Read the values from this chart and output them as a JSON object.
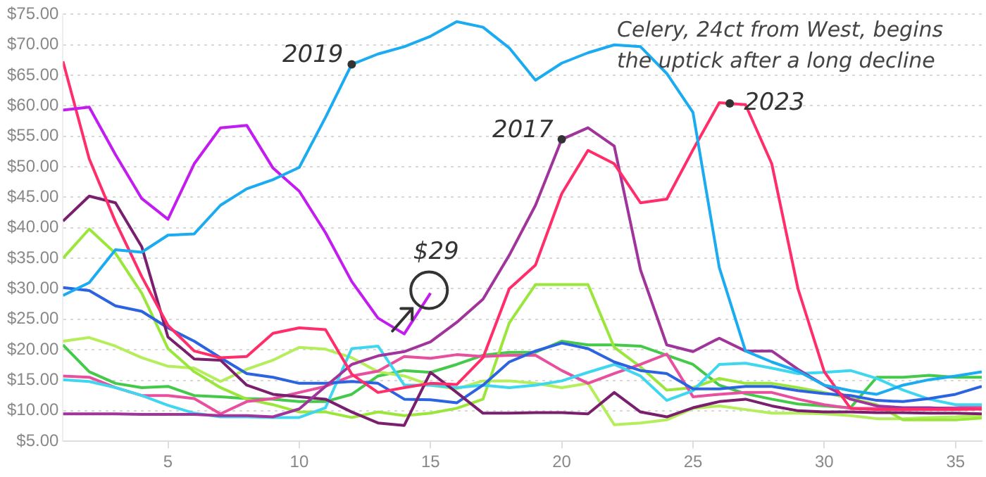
{
  "chart_data": {
    "type": "line",
    "x": [
      1,
      2,
      3,
      4,
      5,
      6,
      7,
      8,
      9,
      10,
      11,
      12,
      13,
      14,
      15,
      16,
      17,
      18,
      19,
      20,
      21,
      22,
      23,
      24,
      25,
      26,
      27,
      28,
      29,
      30,
      31,
      32,
      33,
      34,
      35,
      36
    ],
    "xlim": [
      1,
      36
    ],
    "xticks": [
      5,
      10,
      15,
      20,
      25,
      30,
      35
    ],
    "ylim": [
      5,
      75
    ],
    "yticks": [
      {
        "value": 5,
        "label": "$5.00"
      },
      {
        "value": 10,
        "label": "$10.00"
      },
      {
        "value": 15,
        "label": "$15.00"
      },
      {
        "value": 20,
        "label": "$20.00"
      },
      {
        "value": 25,
        "label": "$25.00"
      },
      {
        "value": 30,
        "label": "$30.00"
      },
      {
        "value": 35,
        "label": "$35.00"
      },
      {
        "value": 40,
        "label": "$40.00"
      },
      {
        "value": 45,
        "label": "$45.00"
      },
      {
        "value": 50,
        "label": "$50.00"
      },
      {
        "value": 55,
        "label": "$55.00"
      },
      {
        "value": 60,
        "label": "$60.00"
      },
      {
        "value": 65,
        "label": "$65.00"
      },
      {
        "value": 70,
        "label": "$70.00"
      },
      {
        "value": 75,
        "label": "$75.00"
      }
    ],
    "grid": "y",
    "marker": "none",
    "line_style": "solid",
    "series": [
      {
        "color": "#1aabf0",
        "values": [
          28.9,
          31,
          36.4,
          36,
          38.8,
          39,
          43.7,
          46.4,
          47.9,
          49.9,
          58.1,
          66.8,
          68.5,
          69.7,
          71.4,
          73.8,
          72.9,
          69.5,
          64.2,
          67,
          68.7,
          70,
          69.7,
          65.3,
          58.9,
          33.5,
          19.8,
          18,
          16.5,
          14.2,
          13.3,
          12.7,
          14.2,
          15.1,
          15.7,
          16.4
        ]
      },
      {
        "color": "#c21cf0",
        "values": [
          59.3,
          59.8,
          52,
          44.8,
          41.4,
          50.5,
          56.4,
          56.8,
          49.8,
          46,
          39.2,
          31.2,
          25.2,
          22.6,
          29.3,
          null,
          null,
          null,
          null,
          null,
          null,
          null,
          null,
          null,
          null,
          null,
          null,
          null,
          null,
          null,
          null,
          null,
          null,
          null,
          null,
          null
        ]
      },
      {
        "color": "#ff2d6a",
        "values": [
          67.3,
          51.3,
          41,
          32,
          24,
          19.8,
          18.7,
          18.9,
          22.7,
          23.6,
          23.3,
          16,
          13,
          13.8,
          14.5,
          14.3,
          18.7,
          30,
          33.9,
          45.6,
          52.7,
          50.5,
          44.1,
          44.7,
          52.8,
          60.5,
          60.2,
          50.5,
          30,
          16.4,
          10.4,
          10.2,
          10.2,
          10.2,
          10.2,
          10.3
        ]
      },
      {
        "color": "#a0349a",
        "values": [
          9.5,
          9.5,
          9.5,
          9.4,
          9.4,
          9.4,
          9.2,
          9.2,
          9,
          10.3,
          14,
          17.6,
          19,
          19.7,
          21.3,
          24.5,
          28.3,
          35.5,
          43.7,
          54.5,
          56.4,
          53.4,
          33.1,
          20.8,
          19.7,
          21.9,
          19.8,
          19.8,
          16.8,
          14.2,
          11.9,
          10.8,
          10.5,
          10.5,
          10.3,
          10.3
        ]
      },
      {
        "color": "#7a1f6e",
        "values": [
          41.1,
          45.2,
          44.1,
          36.9,
          22.1,
          18.5,
          18.3,
          14.2,
          12.7,
          12.3,
          11.9,
          9.8,
          8,
          7.6,
          16.3,
          13,
          9.6,
          9.6,
          9.7,
          9.7,
          9.5,
          13,
          9.8,
          9,
          10.5,
          11.5,
          11.9,
          10.8,
          10,
          9.8,
          9.8,
          9.7,
          9.7,
          9.6,
          9.6,
          9.5
        ]
      },
      {
        "color": "#2b63e0",
        "values": [
          30.2,
          29.7,
          27.2,
          26.3,
          23.6,
          21.4,
          18.7,
          16.1,
          15.5,
          14.5,
          14.5,
          14.8,
          14.5,
          11.9,
          11.8,
          11.3,
          14.2,
          18,
          19.8,
          21.1,
          20.2,
          18,
          16.6,
          16.1,
          13.6,
          13.6,
          14,
          14,
          13.3,
          12.8,
          12.5,
          11.7,
          11.5,
          12,
          12.7,
          14
        ]
      },
      {
        "color": "#3fd6f0",
        "values": [
          15.1,
          14.8,
          13.8,
          12.5,
          10.9,
          9.6,
          9,
          9,
          8.9,
          8.9,
          10.5,
          20.2,
          20.6,
          14.2,
          14.2,
          13.8,
          14.2,
          13.8,
          14.2,
          14.9,
          16.3,
          17.6,
          15.7,
          11.7,
          13.3,
          17.6,
          17.8,
          17,
          16.1,
          16.3,
          16.6,
          15.3,
          13.4,
          11.9,
          11,
          11
        ]
      },
      {
        "color": "#e8509f",
        "values": [
          15.7,
          15.5,
          13.8,
          12.5,
          12.5,
          12,
          9.5,
          11.5,
          12,
          13,
          14,
          15.7,
          16.5,
          18.9,
          18.6,
          19.2,
          18.9,
          19.1,
          19.1,
          16.6,
          14.5,
          16.1,
          17.6,
          19.3,
          12.3,
          12.7,
          13,
          13,
          11.9,
          11,
          10.4,
          10.4,
          10.4,
          10.4,
          10.5,
          10.8
        ]
      },
      {
        "color": "#9ae63a",
        "values": [
          35,
          39.8,
          35.8,
          29.3,
          20.2,
          16.4,
          13.8,
          11.9,
          11,
          9.8,
          9.8,
          8.9,
          9.8,
          9.2,
          9.6,
          10.4,
          11.9,
          24.4,
          30.7,
          30.7,
          30.7,
          20.4,
          17.2,
          13.4,
          13.8,
          15.3,
          14.5,
          14.5,
          13.8,
          13,
          12,
          11,
          8.5,
          8.5,
          8.5,
          8.8
        ]
      },
      {
        "color": "#b4ee5a",
        "values": [
          21.4,
          22,
          20.6,
          18.7,
          17.3,
          17,
          14.8,
          16.8,
          18.3,
          20.4,
          20.1,
          18.7,
          16.4,
          15.7,
          14.2,
          13.6,
          14.9,
          14.9,
          14.5,
          13.8,
          14.5,
          7.7,
          8,
          8.5,
          10.4,
          10.8,
          10.2,
          9.6,
          9.6,
          9.5,
          9.2,
          8.7,
          8.7,
          8.9,
          9,
          9.2
        ]
      },
      {
        "color": "#44c94a",
        "values": [
          20.8,
          16.4,
          14.5,
          13.8,
          14,
          12.5,
          12.3,
          12,
          11.9,
          11.5,
          11.5,
          12.7,
          15.7,
          16.6,
          16.3,
          17.6,
          19.1,
          19.6,
          19.6,
          21.4,
          20.8,
          20.8,
          20.6,
          19.1,
          17.6,
          14.2,
          12.8,
          11.9,
          11.1,
          10.8,
          10.5,
          15.5,
          15.5,
          15.8,
          15.5,
          15.5
        ]
      }
    ],
    "annotations": [
      {
        "text": "2019",
        "x": 12,
        "y": 66.8
      },
      {
        "text": "2017",
        "x": 20,
        "y": 54.5
      },
      {
        "text": "2023",
        "x": 26.4,
        "y": 60.4
      },
      {
        "text": "$29",
        "x": 15,
        "y": 29.3
      },
      "Celery, 24ct from West, begins the uptick after a long decline"
    ]
  }
}
